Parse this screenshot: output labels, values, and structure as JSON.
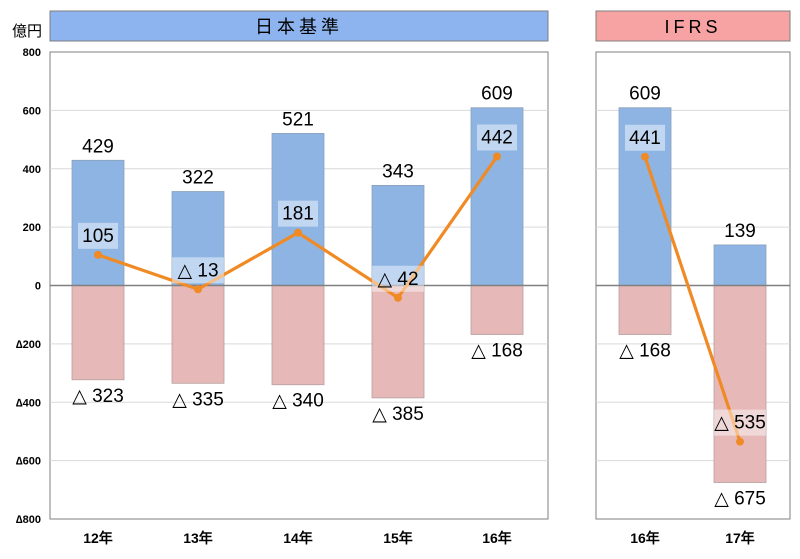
{
  "chart_data": [
    {
      "type": "bar",
      "title": "日本基準",
      "unit_label": "億円",
      "ylim": [
        -800,
        800
      ],
      "y_ticks": [
        {
          "value": 800,
          "label": "800"
        },
        {
          "value": 600,
          "label": "600"
        },
        {
          "value": 400,
          "label": "400"
        },
        {
          "value": 200,
          "label": "200"
        },
        {
          "value": 0,
          "label": "0"
        },
        {
          "value": -200,
          "label": "∆200"
        },
        {
          "value": -400,
          "label": "∆400"
        },
        {
          "value": -600,
          "label": "∆600"
        },
        {
          "value": -800,
          "label": "∆800"
        }
      ],
      "grid": true,
      "categories": [
        "12年",
        "13年",
        "14年",
        "15年",
        "16年"
      ],
      "series": [
        {
          "kind": "bar_positive",
          "color": "#8EB4E3",
          "values": [
            429,
            322,
            521,
            343,
            609
          ],
          "labels": [
            "429",
            "322",
            "521",
            "343",
            "609"
          ]
        },
        {
          "kind": "bar_negative",
          "color": "#E6B9B8",
          "values": [
            -323,
            -335,
            -340,
            -385,
            -168
          ],
          "labels": [
            "△ 323",
            "△ 335",
            "△ 340",
            "△ 385",
            "△ 168"
          ]
        },
        {
          "kind": "line",
          "color": "#F08A24",
          "values": [
            105,
            -13,
            181,
            -42,
            442
          ],
          "labels": [
            "105",
            "△ 13",
            "181",
            "△ 42",
            "442"
          ]
        }
      ]
    },
    {
      "type": "bar",
      "title": "IFRS",
      "ylim": [
        -800,
        800
      ],
      "grid": true,
      "categories": [
        "16年",
        "17年"
      ],
      "series": [
        {
          "kind": "bar_positive",
          "color": "#8EB4E3",
          "values": [
            609,
            139
          ],
          "labels": [
            "609",
            "139"
          ]
        },
        {
          "kind": "bar_negative",
          "color": "#E6B9B8",
          "values": [
            -168,
            -675
          ],
          "labels": [
            "△ 168",
            "△ 675"
          ]
        },
        {
          "kind": "line",
          "color": "#F08A24",
          "values": [
            441,
            -535
          ],
          "labels": [
            "441",
            "△ 535"
          ]
        }
      ]
    }
  ],
  "colors": {
    "header_left_bg": "#8EB4F0",
    "header_right_bg": "#F8A3A3",
    "axis": "#7F7F7F",
    "gridline": "#D9D9D9",
    "frame": "#7F7F7F"
  }
}
